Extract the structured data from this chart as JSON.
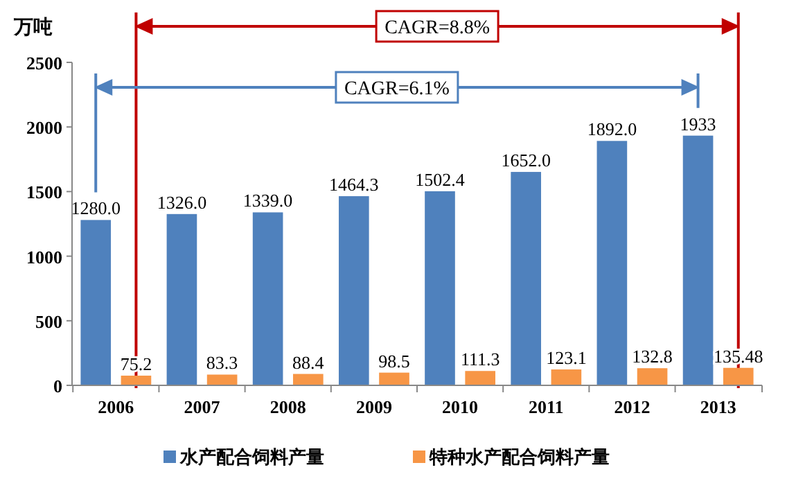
{
  "chart_data": {
    "type": "bar",
    "ylabel": "万吨",
    "categories": [
      "2006",
      "2007",
      "2008",
      "2009",
      "2010",
      "2011",
      "2012",
      "2013"
    ],
    "series": [
      {
        "name": "水产配合饲料产量",
        "color": "#4f81bd",
        "values": [
          1280.0,
          1326.0,
          1339.0,
          1464.3,
          1502.4,
          1652.0,
          1892.0,
          1933
        ],
        "value_labels": [
          "1280.0",
          "1326.0",
          "1339.0",
          "1464.3",
          "1502.4",
          "1652.0",
          "1892.0",
          "1933"
        ]
      },
      {
        "name": "特种水产配合饲料产量",
        "color": "#f79646",
        "values": [
          75.2,
          83.3,
          88.4,
          98.5,
          111.3,
          123.1,
          132.8,
          135.48
        ],
        "value_labels": [
          "75.2",
          "83.3",
          "88.4",
          "98.5",
          "111.3",
          "123.1",
          "132.8",
          "135.48"
        ]
      }
    ],
    "ylim": [
      0,
      2500
    ],
    "yticks": [
      0,
      500,
      1000,
      1500,
      2000,
      2500
    ],
    "legend": "bottom",
    "annotations": [
      "CAGR=8.8%",
      "CAGR=6.1%"
    ]
  }
}
